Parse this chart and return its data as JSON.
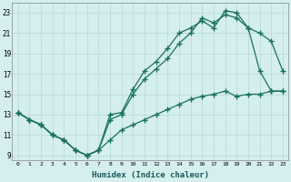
{
  "xlabel": "Humidex (Indice chaleur)",
  "bg_color": "#d5eeee",
  "grid_color": "#b8d8d8",
  "line_color": "#1a7060",
  "xlim": [
    -0.5,
    23.5
  ],
  "ylim": [
    8.5,
    24.0
  ],
  "xticks": [
    0,
    1,
    2,
    3,
    4,
    5,
    6,
    7,
    8,
    9,
    10,
    11,
    12,
    13,
    14,
    15,
    16,
    17,
    18,
    19,
    20,
    21,
    22,
    23
  ],
  "yticks": [
    9,
    11,
    13,
    15,
    17,
    19,
    21,
    23
  ],
  "c1_x": [
    0,
    1,
    2,
    3,
    4,
    5,
    6,
    7,
    8,
    9,
    10,
    11,
    12,
    13,
    14,
    15,
    16,
    17,
    18,
    19,
    20,
    21,
    22,
    23
  ],
  "c1_y": [
    13.2,
    12.5,
    12.0,
    11.0,
    10.5,
    9.5,
    9.0,
    9.5,
    13.0,
    13.2,
    15.5,
    17.3,
    18.2,
    19.5,
    21.0,
    21.5,
    22.2,
    21.5,
    23.2,
    23.0,
    21.5,
    21.0,
    20.2,
    17.3
  ],
  "c2_x": [
    0,
    1,
    2,
    3,
    4,
    5,
    6,
    7,
    8,
    9,
    10,
    11,
    12,
    13,
    14,
    15,
    16,
    17,
    18,
    19,
    20,
    21,
    22,
    23
  ],
  "c2_y": [
    13.2,
    12.5,
    12.0,
    11.0,
    10.5,
    9.5,
    9.0,
    9.5,
    12.5,
    13.0,
    15.0,
    16.5,
    17.5,
    18.5,
    20.0,
    21.0,
    22.5,
    22.0,
    22.8,
    22.5,
    21.5,
    17.3,
    15.3,
    15.3
  ],
  "c3_x": [
    0,
    1,
    2,
    3,
    4,
    5,
    6,
    7,
    8,
    9,
    10,
    11,
    12,
    13,
    14,
    15,
    16,
    17,
    18,
    19,
    20,
    21,
    22,
    23
  ],
  "c3_y": [
    13.2,
    12.5,
    12.0,
    11.0,
    10.5,
    9.5,
    9.0,
    9.5,
    10.5,
    11.5,
    12.0,
    12.5,
    13.0,
    13.5,
    14.0,
    14.5,
    14.8,
    15.0,
    15.3,
    14.8,
    15.0,
    15.0,
    15.3,
    15.3
  ]
}
